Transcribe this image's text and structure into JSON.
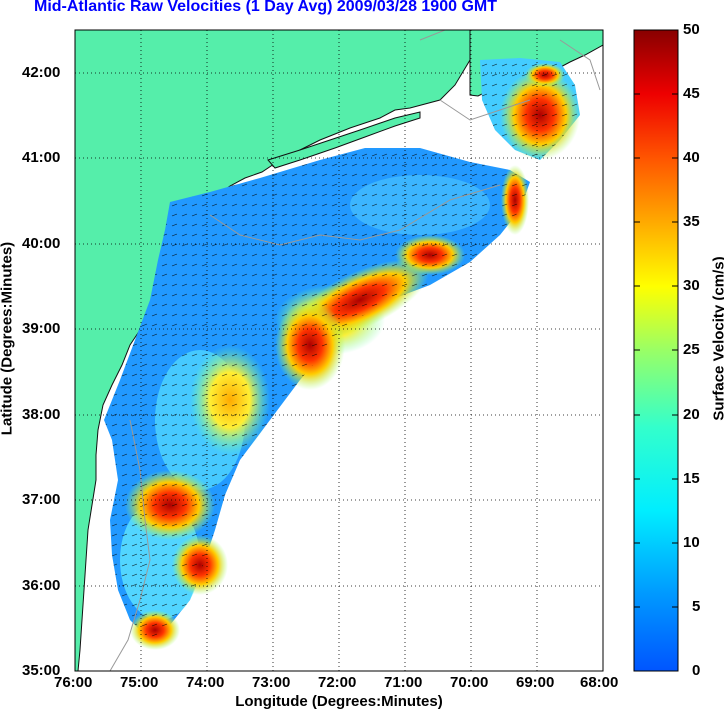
{
  "title": "Mid-Atlantic Raw Velocities (1 Day Avg) 2009/03/28 1900 GMT",
  "map": {
    "xlabel": "Longitude (Degrees:Minutes)",
    "ylabel": "Latitude (Degrees:Minutes)",
    "lon_ticks": [
      "76:00",
      "75:00",
      "74:00",
      "73:00",
      "72:00",
      "71:00",
      "70:00",
      "69:00",
      "68:00"
    ],
    "lat_ticks": [
      "42:00",
      "41:00",
      "40:00",
      "39:00",
      "38:00",
      "37:00",
      "36:00",
      "35:00"
    ],
    "lon_range": [
      -76,
      -68
    ],
    "lat_range": [
      35,
      42.5
    ],
    "land_color": "#55eeaa"
  },
  "colorbar": {
    "label": "Surface Velocity (cm/s)",
    "ticks": [
      "50",
      "45",
      "40",
      "35",
      "30",
      "25",
      "20",
      "15",
      "10",
      "5",
      "0"
    ],
    "range": [
      0,
      50
    ],
    "colormap": "jet"
  }
}
